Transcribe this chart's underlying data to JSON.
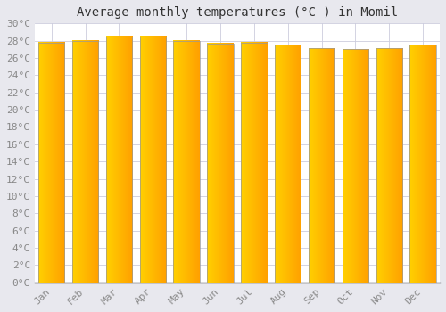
{
  "months": [
    "Jan",
    "Feb",
    "Mar",
    "Apr",
    "May",
    "Jun",
    "Jul",
    "Aug",
    "Sep",
    "Oct",
    "Nov",
    "Dec"
  ],
  "temperatures": [
    27.8,
    28.0,
    28.5,
    28.5,
    28.0,
    27.7,
    27.8,
    27.5,
    27.1,
    27.0,
    27.1,
    27.5
  ],
  "bar_color_left": "#FFD000",
  "bar_color_right": "#FFA000",
  "bar_edge_color": "#999999",
  "title": "Average monthly temperatures (°C ) in Momil",
  "ylim": [
    0,
    30
  ],
  "ytick_step": 2,
  "background_color": "#e8e8ee",
  "plot_bg_color": "#ffffff",
  "grid_color": "#ccccdd",
  "title_fontsize": 10,
  "tick_fontsize": 8,
  "title_color": "#333333",
  "tick_color": "#888888",
  "font_family": "monospace"
}
